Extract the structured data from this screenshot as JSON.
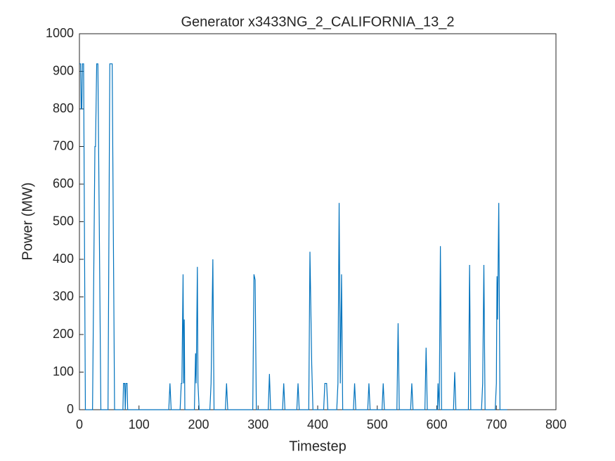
{
  "chart_data": {
    "type": "line",
    "title": "Generator x3433NG_2_CALIFORNIA_13_2",
    "x_label": "Timestep",
    "y_label": "Power (MW)",
    "xlim": [
      0,
      800
    ],
    "xticks": [
      0,
      100,
      200,
      300,
      400,
      500,
      600,
      700,
      800
    ],
    "ylim": [
      0,
      1000
    ],
    "yticks": [
      0,
      100,
      200,
      300,
      400,
      500,
      600,
      700,
      800,
      900,
      1000
    ],
    "grid": false,
    "x": [
      0,
      2,
      3,
      4,
      5,
      7,
      10,
      22,
      26,
      27,
      29,
      31,
      36,
      48,
      51,
      55,
      59,
      73,
      74,
      76,
      77,
      78,
      80,
      81,
      150,
      152,
      154,
      169,
      171,
      172,
      174,
      175,
      176,
      177,
      193,
      195,
      196,
      198,
      199,
      201,
      219,
      221,
      224,
      226,
      245,
      247,
      249,
      291,
      293,
      295,
      297,
      317,
      319,
      321,
      341,
      343,
      345,
      365,
      367,
      369,
      385,
      387,
      390,
      392,
      410,
      412,
      415,
      417,
      432,
      434,
      436,
      438,
      440,
      442,
      460,
      462,
      464,
      484,
      486,
      488,
      508,
      510,
      512,
      533,
      535,
      537,
      556,
      558,
      560,
      580,
      582,
      584,
      601,
      602,
      604,
      606,
      608,
      628,
      630,
      632,
      653,
      655,
      657,
      675,
      677,
      679,
      681,
      698,
      700,
      701,
      702,
      704,
      706,
      718
    ],
    "series": [
      {
        "color": "#0072bd",
        "values": [
          920,
          920,
          800,
          800,
          920,
          920,
          0,
          0,
          700,
          700,
          920,
          920,
          0,
          0,
          920,
          920,
          0,
          0,
          70,
          70,
          0,
          70,
          70,
          0,
          0,
          70,
          0,
          0,
          70,
          70,
          360,
          70,
          240,
          0,
          0,
          150,
          70,
          380,
          70,
          0,
          0,
          70,
          400,
          0,
          0,
          70,
          0,
          0,
          360,
          345,
          0,
          0,
          95,
          0,
          0,
          70,
          0,
          0,
          70,
          0,
          0,
          420,
          120,
          0,
          0,
          70,
          70,
          0,
          0,
          70,
          550,
          70,
          360,
          0,
          0,
          70,
          0,
          0,
          70,
          0,
          0,
          70,
          0,
          0,
          230,
          0,
          0,
          70,
          0,
          0,
          165,
          0,
          0,
          70,
          0,
          435,
          0,
          0,
          100,
          0,
          0,
          385,
          0,
          0,
          70,
          385,
          0,
          0,
          70,
          355,
          240,
          550,
          0,
          0
        ]
      }
    ]
  }
}
